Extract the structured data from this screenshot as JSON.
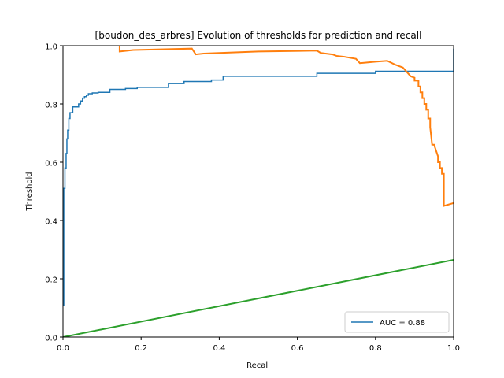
{
  "chart_data": {
    "type": "line",
    "title": "[boudon_des_arbres] Evolution of thresholds for prediction and recall",
    "xlabel": "Recall",
    "ylabel": "Threshold",
    "xlim": [
      0,
      1
    ],
    "ylim": [
      0,
      1
    ],
    "grid": false,
    "legend_placement": "lower-right",
    "x_ticks": [
      "0.0",
      "0.2",
      "0.4",
      "0.6",
      "0.8",
      "1.0"
    ],
    "y_ticks": [
      "0.0",
      "0.2",
      "0.4",
      "0.6",
      "0.8",
      "1.0"
    ],
    "series": [
      {
        "name": "AUC = 0.88",
        "color": "#1f77b4",
        "x": [
          0.0,
          0.002,
          0.002,
          0.005,
          0.005,
          0.008,
          0.008,
          0.01,
          0.01,
          0.012,
          0.012,
          0.015,
          0.015,
          0.018,
          0.018,
          0.025,
          0.025,
          0.04,
          0.04,
          0.045,
          0.045,
          0.05,
          0.05,
          0.055,
          0.055,
          0.06,
          0.06,
          0.065,
          0.065,
          0.075,
          0.075,
          0.09,
          0.09,
          0.12,
          0.12,
          0.16,
          0.16,
          0.19,
          0.19,
          0.27,
          0.27,
          0.31,
          0.31,
          0.38,
          0.38,
          0.41,
          0.41,
          0.65,
          0.65,
          0.8,
          0.8,
          1.0,
          1.0
        ],
        "y": [
          0.11,
          0.11,
          0.51,
          0.51,
          0.58,
          0.58,
          0.63,
          0.63,
          0.68,
          0.68,
          0.71,
          0.71,
          0.75,
          0.75,
          0.77,
          0.77,
          0.79,
          0.79,
          0.8,
          0.8,
          0.81,
          0.81,
          0.82,
          0.82,
          0.825,
          0.825,
          0.83,
          0.83,
          0.835,
          0.835,
          0.838,
          0.838,
          0.84,
          0.84,
          0.85,
          0.85,
          0.853,
          0.853,
          0.857,
          0.857,
          0.87,
          0.87,
          0.877,
          0.877,
          0.882,
          0.882,
          0.895,
          0.895,
          0.905,
          0.905,
          0.912,
          0.912,
          0.99
        ]
      },
      {
        "name": "",
        "color": "#ff7f0e",
        "x": [
          0.145,
          0.145,
          0.18,
          0.33,
          0.34,
          0.36,
          0.5,
          0.65,
          0.66,
          0.69,
          0.7,
          0.72,
          0.75,
          0.76,
          0.8,
          0.83,
          0.85,
          0.87,
          0.88,
          0.89,
          0.9,
          0.9,
          0.91,
          0.91,
          0.915,
          0.915,
          0.92,
          0.92,
          0.925,
          0.925,
          0.93,
          0.93,
          0.935,
          0.935,
          0.94,
          0.94,
          0.945,
          0.95,
          0.955,
          0.96,
          0.96,
          0.965,
          0.965,
          0.97,
          0.97,
          0.975,
          0.975,
          1.0
        ],
        "y": [
          1.0,
          0.98,
          0.985,
          0.99,
          0.97,
          0.973,
          0.98,
          0.983,
          0.975,
          0.97,
          0.965,
          0.962,
          0.955,
          0.94,
          0.945,
          0.948,
          0.935,
          0.925,
          0.91,
          0.895,
          0.89,
          0.88,
          0.88,
          0.86,
          0.86,
          0.84,
          0.84,
          0.82,
          0.82,
          0.8,
          0.8,
          0.78,
          0.78,
          0.75,
          0.75,
          0.72,
          0.66,
          0.66,
          0.64,
          0.62,
          0.6,
          0.6,
          0.58,
          0.58,
          0.56,
          0.56,
          0.45,
          0.46
        ]
      },
      {
        "name": "",
        "color": "#2ca02c",
        "x": [
          0.0,
          1.0
        ],
        "y": [
          0.0,
          0.265
        ]
      }
    ]
  }
}
